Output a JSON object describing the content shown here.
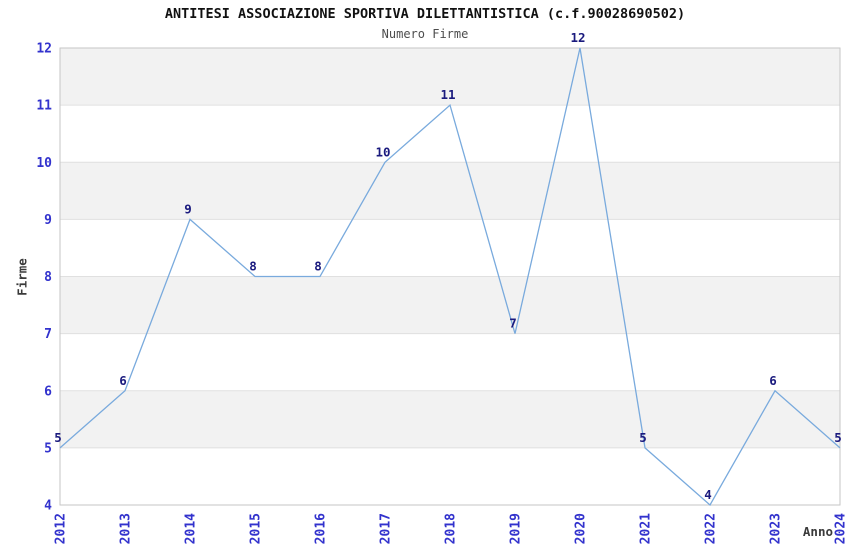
{
  "header": {
    "title": "ANTITESI ASSOCIAZIONE SPORTIVA DILETTANTISTICA (c.f.90028690502)",
    "subtitle": "Numero Firme"
  },
  "axes": {
    "y_label": "Firme",
    "x_label": "Anno"
  },
  "chart_data": {
    "type": "line",
    "title": "ANTITESI ASSOCIAZIONE SPORTIVA DILETTANTISTICA (c.f.90028690502)",
    "subtitle": "Numero Firme",
    "xlabel": "Anno",
    "ylabel": "Firme",
    "categories": [
      "2012",
      "2013",
      "2014",
      "2015",
      "2016",
      "2017",
      "2018",
      "2019",
      "2020",
      "2021",
      "2022",
      "2023",
      "2024"
    ],
    "values": [
      5,
      6,
      9,
      8,
      8,
      10,
      11,
      7,
      12,
      5,
      4,
      6,
      5
    ],
    "ylim": [
      4,
      12
    ],
    "ytick_step": 1,
    "yticks": [
      4,
      5,
      6,
      7,
      8,
      9,
      10,
      11,
      12
    ],
    "grid": true,
    "legend": null,
    "colors": {
      "line": "#79aadd",
      "point_label": "#1a1a7e",
      "tick_label": "#3232cd",
      "band_odd": "#f2f2f2",
      "band_even": "#ffffff",
      "gridline": "#e0e0e0",
      "plot_border": "#c6c6c6",
      "axis_title": "#3a3a3a",
      "title": "#111111",
      "subtitle": "#4d4d4d"
    }
  }
}
